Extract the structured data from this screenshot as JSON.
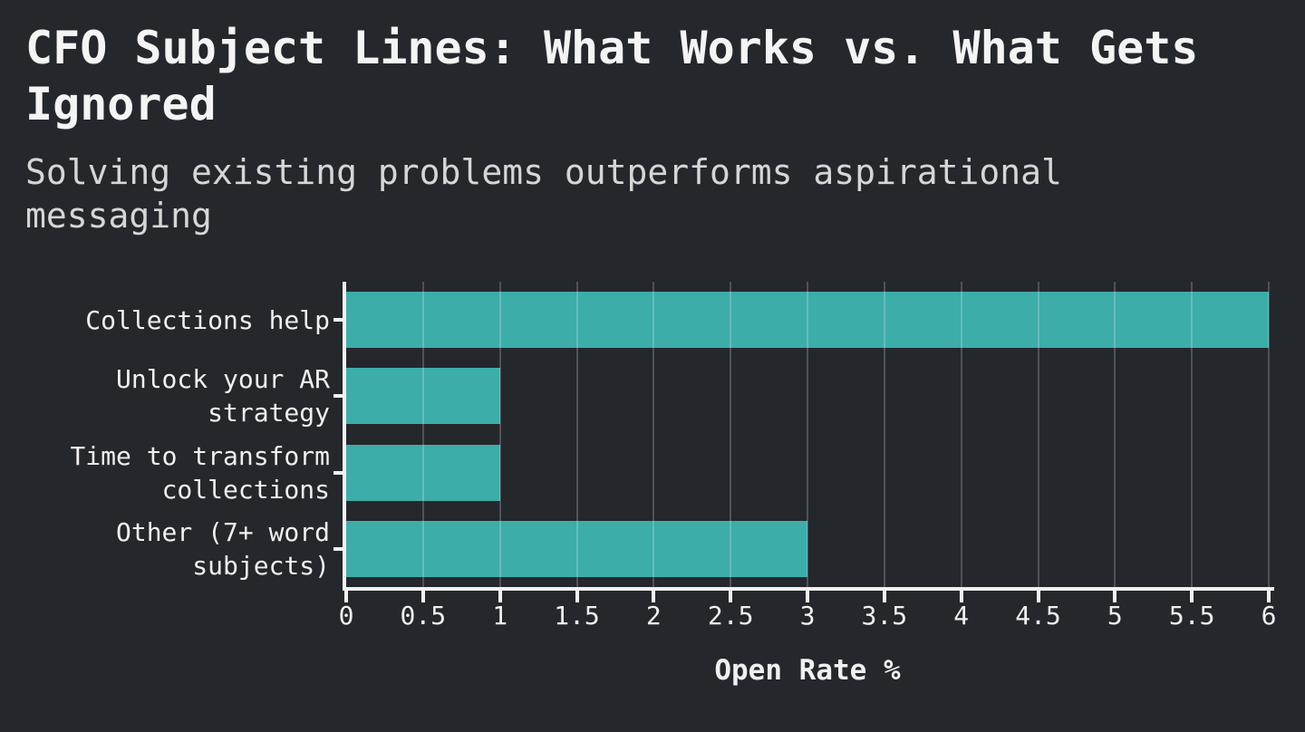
{
  "header": {
    "title": "CFO Subject Lines: What Works vs. What Gets Ignored",
    "subtitle": "Solving existing problems outperforms aspirational messaging"
  },
  "chart_data": {
    "type": "bar",
    "orientation": "horizontal",
    "title": "CFO Subject Lines: What Works vs. What Gets Ignored",
    "subtitle": "Solving existing problems outperforms aspirational messaging",
    "categories": [
      "Collections help",
      "Unlock your AR strategy",
      "Time to transform collections",
      "Other (7+ word subjects)"
    ],
    "category_label_lines": [
      [
        "Collections help"
      ],
      [
        "Unlock your AR",
        "strategy"
      ],
      [
        "Time to transform",
        "collections"
      ],
      [
        "Other (7+ word",
        "subjects)"
      ]
    ],
    "values": [
      6,
      1,
      1,
      3
    ],
    "xlabel": "Open Rate %",
    "ylabel": "",
    "xlim": [
      0,
      6
    ],
    "xticks": [
      0,
      0.5,
      1,
      1.5,
      2,
      2.5,
      3,
      3.5,
      4,
      4.5,
      5,
      5.5,
      6
    ],
    "xtick_labels": [
      "0",
      "0.5",
      "1",
      "1.5",
      "2",
      "2.5",
      "3",
      "3.5",
      "4",
      "4.5",
      "5",
      "5.5",
      "6"
    ],
    "grid": true,
    "legend": false,
    "colors": {
      "background": "#24272c",
      "bar": "#3dada9",
      "grid": "rgba(255,255,255,0.20)",
      "axis": "#f2f2f2",
      "tick": "#f2f2f2",
      "label_text": "#f0f0f0",
      "title_text": "#f4f4f4",
      "subtitle_text": "#d6d6d6"
    }
  }
}
